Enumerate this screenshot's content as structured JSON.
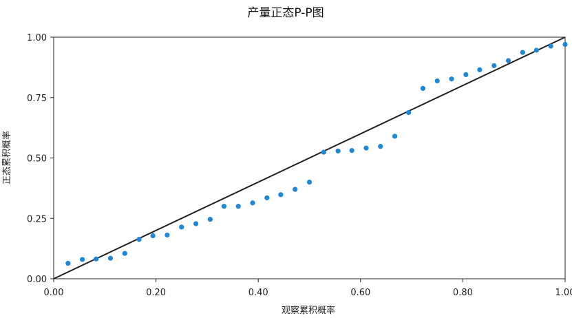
{
  "chart_data": {
    "type": "scatter",
    "title": "产量正态P-P图",
    "xlabel": "观察累积概率",
    "ylabel": "正态累积概率",
    "xlim": [
      0,
      1
    ],
    "ylim": [
      0,
      1
    ],
    "x_ticks": [
      "0.00",
      "0.20",
      "0.40",
      "0.60",
      "0.80",
      "1.00"
    ],
    "y_ticks": [
      "0.00",
      "0.25",
      "0.50",
      "0.75",
      "1.00"
    ],
    "grid": false,
    "reference_line": {
      "from": [
        0,
        0
      ],
      "to": [
        1,
        1
      ],
      "color": "#222222"
    },
    "marker_color": "#1f87d6",
    "series": [
      {
        "points": [
          [
            0.028,
            0.064
          ],
          [
            0.056,
            0.08
          ],
          [
            0.083,
            0.082
          ],
          [
            0.111,
            0.085
          ],
          [
            0.139,
            0.105
          ],
          [
            0.167,
            0.163
          ],
          [
            0.194,
            0.178
          ],
          [
            0.222,
            0.181
          ],
          [
            0.25,
            0.214
          ],
          [
            0.278,
            0.228
          ],
          [
            0.306,
            0.246
          ],
          [
            0.333,
            0.3
          ],
          [
            0.361,
            0.3
          ],
          [
            0.389,
            0.314
          ],
          [
            0.417,
            0.335
          ],
          [
            0.444,
            0.348
          ],
          [
            0.472,
            0.37
          ],
          [
            0.5,
            0.4
          ],
          [
            0.528,
            0.524
          ],
          [
            0.556,
            0.529
          ],
          [
            0.583,
            0.531
          ],
          [
            0.611,
            0.541
          ],
          [
            0.639,
            0.548
          ],
          [
            0.667,
            0.59
          ],
          [
            0.694,
            0.688
          ],
          [
            0.722,
            0.788
          ],
          [
            0.75,
            0.819
          ],
          [
            0.778,
            0.827
          ],
          [
            0.806,
            0.845
          ],
          [
            0.833,
            0.865
          ],
          [
            0.861,
            0.882
          ],
          [
            0.889,
            0.903
          ],
          [
            0.917,
            0.937
          ],
          [
            0.944,
            0.946
          ],
          [
            0.972,
            0.963
          ],
          [
            1.0,
            0.97
          ]
        ]
      }
    ]
  }
}
